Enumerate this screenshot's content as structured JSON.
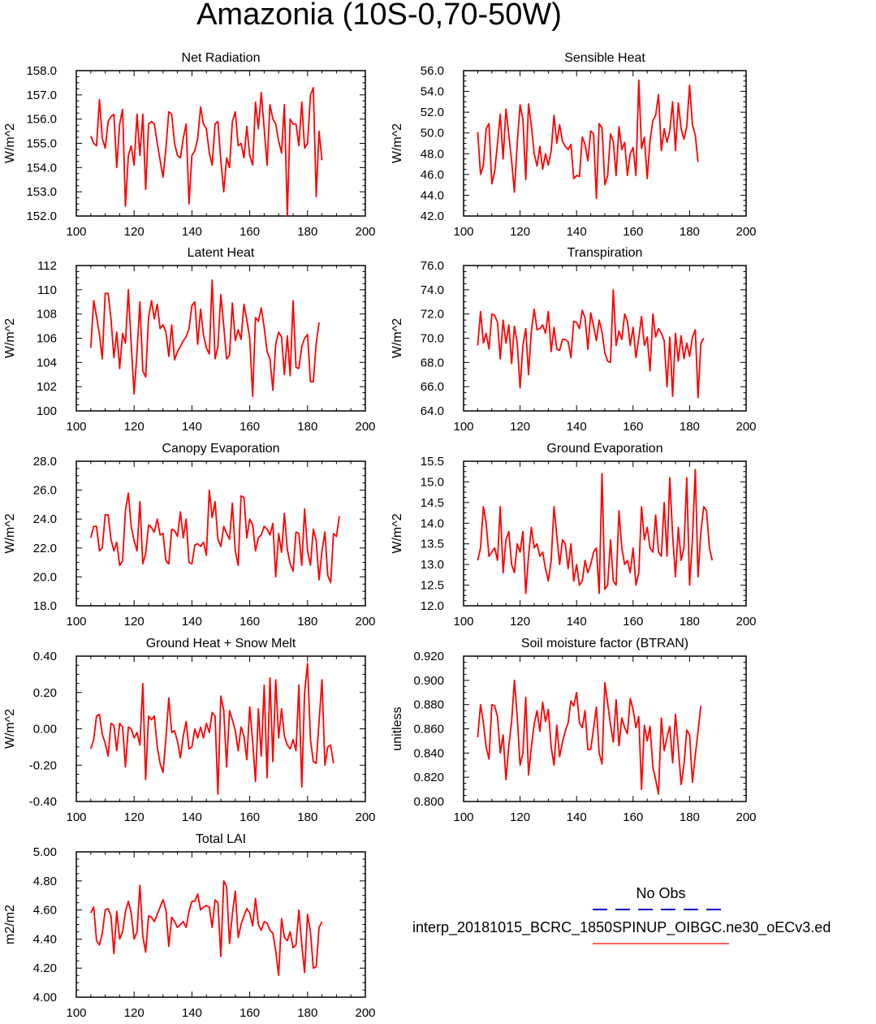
{
  "title": "Amazonia (10S-0,70-50W)",
  "colors": {
    "series": "#ff0000",
    "obs": "#0000cc",
    "axis": "#000000"
  },
  "legend": {
    "obs_label": "No Obs",
    "model_label": "interp_20181015_BCRC_1850SPINUP_OIBGC.ne30_oECv3.ed"
  },
  "chart_data": [
    {
      "type": "line",
      "title": "Net Radiation",
      "ylabel": "W/m^2",
      "xlim": [
        100,
        200
      ],
      "xticks": [
        100,
        120,
        140,
        160,
        180,
        200
      ],
      "xtick_labels": [
        "100",
        "120",
        "140",
        "160",
        "180",
        "200"
      ],
      "ylim": [
        152,
        158
      ],
      "yticks": [
        152,
        153,
        154,
        155,
        156,
        157,
        158
      ],
      "ytick_labels": [
        "152.0",
        "153.0",
        "154.0",
        "155.0",
        "156.0",
        "157.0",
        "158.0"
      ],
      "x_start": 105,
      "values": [
        155.3,
        155.0,
        154.9,
        156.8,
        155.2,
        154.8,
        155.9,
        156.1,
        156.2,
        154.0,
        155.8,
        156.4,
        152.4,
        154.5,
        154.9,
        154.1,
        156.2,
        154.5,
        156.2,
        153.1,
        155.8,
        155.9,
        155.8,
        155.0,
        154.3,
        153.6,
        154.8,
        156.3,
        156.2,
        155.0,
        154.5,
        154.4,
        155.2,
        155.8,
        152.5,
        154.5,
        154.7,
        155.2,
        156.5,
        155.8,
        155.6,
        154.6,
        154.1,
        155.8,
        155.9,
        154.3,
        153.0,
        154.4,
        154.0,
        155.9,
        156.3,
        154.9,
        155.0,
        154.4,
        155.7,
        154.5,
        154.1,
        156.7,
        155.6,
        157.1,
        155.6,
        154.1,
        156.6,
        156.0,
        155.8,
        155.1,
        154.6,
        156.6,
        152.0,
        156.0,
        155.8,
        155.8,
        154.9,
        156.7,
        154.8,
        155.0,
        157.0,
        157.3,
        152.8,
        155.5,
        154.3
      ]
    },
    {
      "type": "line",
      "title": "Sensible Heat",
      "ylabel": "W/m^2",
      "xlim": [
        100,
        200
      ],
      "xticks": [
        100,
        120,
        140,
        160,
        180,
        200
      ],
      "xtick_labels": [
        "100",
        "120",
        "140",
        "160",
        "180",
        "200"
      ],
      "ylim": [
        42,
        56
      ],
      "yticks": [
        42,
        44,
        46,
        48,
        50,
        52,
        54,
        56
      ],
      "ytick_labels": [
        "42.0",
        "44.0",
        "46.0",
        "48.0",
        "50.0",
        "52.0",
        "54.0",
        "56.0"
      ],
      "x_start": 105,
      "values": [
        50.1,
        46.0,
        46.9,
        50.4,
        50.9,
        45.1,
        46.3,
        49.0,
        51.8,
        47.5,
        52.3,
        49.8,
        47.3,
        44.3,
        49.0,
        52.7,
        51.3,
        45.5,
        52.8,
        50.7,
        48.0,
        46.8,
        48.7,
        46.5,
        48.0,
        46.9,
        48.3,
        51.7,
        49.0,
        50.8,
        49.2,
        48.7,
        48.4,
        48.9,
        45.6,
        45.9,
        45.8,
        49.6,
        48.9,
        47.3,
        50.2,
        49.9,
        43.7,
        50.9,
        50.5,
        45.0,
        45.9,
        49.9,
        49.2,
        45.9,
        50.6,
        48.4,
        49.1,
        45.9,
        48.0,
        48.6,
        45.9,
        55.1,
        48.5,
        49.6,
        45.6,
        49.3,
        51.2,
        51.7,
        53.7,
        48.3,
        50.4,
        49.1,
        50.2,
        53.0,
        48.3,
        52.9,
        50.4,
        49.4,
        50.6,
        54.6,
        50.8,
        49.8,
        47.2
      ]
    },
    {
      "type": "line",
      "title": "Latent Heat",
      "ylabel": "W/m^2",
      "xlim": [
        100,
        200
      ],
      "xticks": [
        100,
        120,
        140,
        160,
        180,
        200
      ],
      "xtick_labels": [
        "100",
        "120",
        "140",
        "160",
        "180",
        "200"
      ],
      "ylim": [
        100,
        112
      ],
      "yticks": [
        100,
        102,
        104,
        106,
        108,
        110,
        112
      ],
      "ytick_labels": [
        "100",
        "102",
        "104",
        "106",
        "108",
        "110",
        "112"
      ],
      "x_start": 105,
      "values": [
        105.2,
        109.1,
        107.8,
        106.3,
        104.3,
        109.7,
        109.7,
        107.6,
        104.4,
        106.5,
        103.5,
        106.4,
        105.6,
        110.0,
        105.5,
        101.4,
        104.9,
        109.0,
        103.3,
        102.8,
        107.7,
        109.1,
        107.6,
        108.8,
        106.8,
        107.1,
        106.5,
        104.5,
        107.1,
        104.2,
        104.9,
        105.3,
        105.8,
        106.1,
        106.8,
        108.7,
        109.0,
        105.5,
        108.4,
        106.3,
        105.2,
        104.7,
        110.8,
        104.3,
        105.3,
        109.6,
        107.0,
        104.3,
        104.6,
        108.9,
        105.8,
        106.7,
        105.9,
        108.8,
        107.5,
        106.0,
        101.2,
        107.7,
        107.4,
        108.5,
        106.9,
        104.9,
        104.3,
        101.7,
        105.5,
        106.5,
        106.1,
        103.0,
        106.2,
        102.9,
        109.1,
        103.6,
        103.5,
        105.3,
        106.0,
        106.3,
        102.4,
        102.4,
        105.6,
        107.3
      ]
    },
    {
      "type": "line",
      "title": "Transpiration",
      "ylabel": "W/m^2",
      "xlim": [
        100,
        200
      ],
      "xticks": [
        100,
        120,
        140,
        160,
        180,
        200
      ],
      "xtick_labels": [
        "100",
        "120",
        "140",
        "160",
        "180",
        "200"
      ],
      "ylim": [
        64,
        76
      ],
      "yticks": [
        64,
        66,
        68,
        70,
        72,
        74,
        76
      ],
      "ytick_labels": [
        "64.0",
        "66.0",
        "68.0",
        "70.0",
        "72.0",
        "74.0",
        "76.0"
      ],
      "x_start": 105,
      "values": [
        69.4,
        72.2,
        69.6,
        70.4,
        69.1,
        72.0,
        71.9,
        71.3,
        68.3,
        71.5,
        69.6,
        71.1,
        67.9,
        71.0,
        69.6,
        65.9,
        69.4,
        70.8,
        67.0,
        70.6,
        72.4,
        70.7,
        70.8,
        71.1,
        70.4,
        72.2,
        68.9,
        70.9,
        69.1,
        69.0,
        69.9,
        69.9,
        69.7,
        68.4,
        71.4,
        71.3,
        70.8,
        72.3,
        71.7,
        69.1,
        72.1,
        71.0,
        69.8,
        71.5,
        70.5,
        68.8,
        68.1,
        68.0,
        74.0,
        69.4,
        70.6,
        69.9,
        72.0,
        71.4,
        69.4,
        70.9,
        68.4,
        70.0,
        71.8,
        69.4,
        70.1,
        67.3,
        72.0,
        70.1,
        70.8,
        70.4,
        69.8,
        66.0,
        70.1,
        65.2,
        70.4,
        68.1,
        70.2,
        68.3,
        69.6,
        68.5,
        70.1,
        70.7,
        65.1,
        69.6,
        70.0
      ]
    },
    {
      "type": "line",
      "title": "Canopy Evaporation",
      "ylabel": "W/m^2",
      "xlim": [
        100,
        200
      ],
      "xticks": [
        100,
        120,
        140,
        160,
        180,
        200
      ],
      "xtick_labels": [
        "100",
        "120",
        "140",
        "160",
        "180",
        "200"
      ],
      "ylim": [
        18,
        28
      ],
      "yticks": [
        18,
        20,
        22,
        24,
        26,
        28
      ],
      "ytick_labels": [
        "18.0",
        "20.0",
        "22.0",
        "24.0",
        "26.0",
        "28.0"
      ],
      "x_start": 105,
      "values": [
        22.7,
        23.5,
        23.5,
        21.8,
        22.0,
        24.3,
        24.3,
        22.6,
        21.8,
        22.4,
        20.8,
        21.1,
        24.6,
        25.8,
        23.5,
        22.5,
        21.8,
        25.2,
        20.9,
        21.6,
        23.6,
        23.4,
        23.1,
        24.0,
        22.9,
        23.0,
        21.1,
        20.9,
        23.3,
        23.2,
        22.8,
        24.5,
        22.7,
        24.0,
        21.0,
        20.9,
        22.2,
        22.3,
        22.1,
        22.4,
        21.5,
        26.0,
        24.1,
        25.2,
        22.6,
        22.1,
        23.5,
        23.0,
        22.6,
        25.1,
        21.8,
        20.8,
        25.6,
        25.5,
        22.7,
        24.0,
        23.6,
        21.8,
        22.7,
        22.9,
        23.5,
        23.3,
        22.9,
        23.7,
        20.0,
        23.0,
        21.7,
        24.4,
        21.9,
        20.9,
        20.4,
        23.1,
        23.0,
        20.8,
        24.7,
        21.8,
        20.8,
        23.3,
        22.5,
        19.8,
        21.8,
        23.1,
        20.1,
        19.6,
        23.0,
        22.8,
        24.2
      ]
    },
    {
      "type": "line",
      "title": "Ground Evaporation",
      "ylabel": "W/m^2",
      "xlim": [
        100,
        200
      ],
      "xticks": [
        100,
        120,
        140,
        160,
        180,
        200
      ],
      "xtick_labels": [
        "100",
        "120",
        "140",
        "160",
        "180",
        "200"
      ],
      "ylim": [
        12,
        15.5
      ],
      "yticks": [
        12,
        12.5,
        13,
        13.5,
        14,
        14.5,
        15,
        15.5
      ],
      "ytick_labels": [
        "12.0",
        "12.5",
        "13.0",
        "13.5",
        "14.0",
        "14.5",
        "15.0",
        "15.5"
      ],
      "x_start": 105,
      "values": [
        13.1,
        13.4,
        14.4,
        14.0,
        13.2,
        13.3,
        13.4,
        13.1,
        14.4,
        12.8,
        13.6,
        13.8,
        13.0,
        12.8,
        13.5,
        13.3,
        13.8,
        12.3,
        13.2,
        13.9,
        13.4,
        13.5,
        13.2,
        13.3,
        12.9,
        12.6,
        13.1,
        14.4,
        13.7,
        13.0,
        13.6,
        13.5,
        12.9,
        13.5,
        12.6,
        13.0,
        12.5,
        12.6,
        13.1,
        12.8,
        13.0,
        13.3,
        13.4,
        12.3,
        15.2,
        12.4,
        12.5,
        13.6,
        12.6,
        12.5,
        14.3,
        13.4,
        13.0,
        13.1,
        12.8,
        13.4,
        12.5,
        12.8,
        14.4,
        13.6,
        13.9,
        13.4,
        13.3,
        14.2,
        13.3,
        13.2,
        14.5,
        13.2,
        15.1,
        13.7,
        12.7,
        13.9,
        13.1,
        13.4,
        15.1,
        12.5,
        13.6,
        15.3,
        12.7,
        13.8,
        14.4,
        14.3,
        13.4,
        13.1
      ]
    },
    {
      "type": "line",
      "title": "Ground Heat + Snow Melt",
      "ylabel": "W/m^2",
      "xlim": [
        100,
        200
      ],
      "xticks": [
        100,
        120,
        140,
        160,
        180,
        200
      ],
      "xtick_labels": [
        "100",
        "120",
        "140",
        "160",
        "180",
        "200"
      ],
      "ylim": [
        -0.4,
        0.4
      ],
      "yticks": [
        -0.4,
        -0.2,
        0,
        0.2,
        0.4
      ],
      "ytick_labels": [
        "-0.40",
        "-0.20",
        "0.00",
        "0.20",
        "0.40"
      ],
      "x_start": 105,
      "values": [
        -0.11,
        -0.06,
        0.07,
        0.08,
        -0.03,
        -0.08,
        -0.15,
        0.03,
        0.02,
        -0.12,
        0.03,
        0.01,
        -0.21,
        0.01,
        0.0,
        -0.05,
        -0.02,
        -0.09,
        0.25,
        -0.28,
        0.07,
        0.05,
        0.07,
        -0.1,
        -0.19,
        -0.24,
        -0.05,
        0.17,
        -0.02,
        -0.01,
        -0.07,
        -0.16,
        -0.04,
        0.04,
        -0.11,
        -0.1,
        0.0,
        -0.05,
        0.01,
        -0.05,
        0.03,
        -0.02,
        0.09,
        0.07,
        -0.36,
        0.18,
        0.1,
        -0.21,
        0.1,
        0.05,
        -0.01,
        -0.12,
        0.01,
        -0.04,
        -0.17,
        0.12,
        -0.07,
        -0.29,
        0.11,
        -0.15,
        0.24,
        -0.27,
        0.28,
        -0.18,
        0.27,
        -0.05,
        0.11,
        -0.04,
        -0.09,
        -0.11,
        -0.06,
        -0.12,
        0.24,
        -0.32,
        0.2,
        0.36,
        -0.06,
        -0.18,
        -0.19,
        0.04,
        0.27,
        -0.2,
        -0.1,
        -0.09,
        -0.19
      ]
    },
    {
      "type": "line",
      "title": "Soil moisture factor (BTRAN)",
      "ylabel": "unitless",
      "xlim": [
        100,
        200
      ],
      "xticks": [
        100,
        120,
        140,
        160,
        180,
        200
      ],
      "xtick_labels": [
        "100",
        "120",
        "140",
        "160",
        "180",
        "200"
      ],
      "ylim": [
        0.8,
        0.92
      ],
      "yticks": [
        0.8,
        0.82,
        0.84,
        0.86,
        0.88,
        0.9,
        0.92
      ],
      "ytick_labels": [
        "0.800",
        "0.820",
        "0.840",
        "0.860",
        "0.880",
        "0.900",
        "0.920"
      ],
      "x_start": 105,
      "values": [
        0.853,
        0.88,
        0.865,
        0.845,
        0.835,
        0.88,
        0.879,
        0.87,
        0.84,
        0.855,
        0.818,
        0.846,
        0.866,
        0.9,
        0.87,
        0.83,
        0.84,
        0.886,
        0.822,
        0.845,
        0.864,
        0.875,
        0.858,
        0.882,
        0.866,
        0.876,
        0.845,
        0.83,
        0.863,
        0.837,
        0.849,
        0.858,
        0.865,
        0.883,
        0.879,
        0.89,
        0.865,
        0.861,
        0.875,
        0.843,
        0.843,
        0.86,
        0.878,
        0.84,
        0.831,
        0.898,
        0.881,
        0.863,
        0.849,
        0.884,
        0.846,
        0.869,
        0.861,
        0.856,
        0.885,
        0.876,
        0.861,
        0.87,
        0.81,
        0.863,
        0.85,
        0.862,
        0.828,
        0.818,
        0.806,
        0.869,
        0.842,
        0.853,
        0.862,
        0.832,
        0.872,
        0.844,
        0.814,
        0.83,
        0.859,
        0.855,
        0.816,
        0.838,
        0.858,
        0.879
      ]
    },
    {
      "type": "line",
      "title": "Total LAI",
      "ylabel": "m2/m2",
      "xlim": [
        100,
        200
      ],
      "xticks": [
        100,
        120,
        140,
        160,
        180,
        200
      ],
      "xtick_labels": [
        "100",
        "120",
        "140",
        "160",
        "180",
        "200"
      ],
      "ylim": [
        4.0,
        5.0
      ],
      "yticks": [
        4.0,
        4.2,
        4.4,
        4.6,
        4.8,
        5.0
      ],
      "ytick_labels": [
        "4.00",
        "4.20",
        "4.40",
        "4.60",
        "4.80",
        "5.00"
      ],
      "x_start": 105,
      "values": [
        4.58,
        4.62,
        4.39,
        4.36,
        4.44,
        4.6,
        4.61,
        4.56,
        4.3,
        4.59,
        4.4,
        4.45,
        4.59,
        4.66,
        4.58,
        4.4,
        4.45,
        4.77,
        4.42,
        4.31,
        4.56,
        4.55,
        4.52,
        4.57,
        4.62,
        4.67,
        4.6,
        4.35,
        4.55,
        4.52,
        4.48,
        4.5,
        4.52,
        4.48,
        4.59,
        4.66,
        4.66,
        4.71,
        4.6,
        4.62,
        4.63,
        4.62,
        4.48,
        4.67,
        4.65,
        4.28,
        4.8,
        4.76,
        4.37,
        4.57,
        4.73,
        4.41,
        4.5,
        4.56,
        4.61,
        4.58,
        4.49,
        4.68,
        4.5,
        4.46,
        4.52,
        4.51,
        4.46,
        4.44,
        4.32,
        4.15,
        4.54,
        4.41,
        4.39,
        4.45,
        4.34,
        4.36,
        4.6,
        4.36,
        4.17,
        4.57,
        4.45,
        4.2,
        4.21,
        4.48,
        4.52
      ]
    }
  ]
}
